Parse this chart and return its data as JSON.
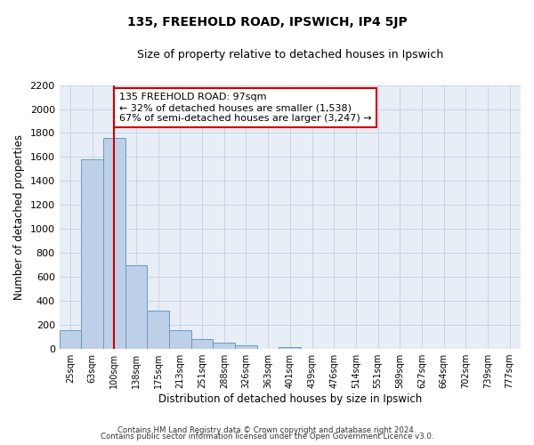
{
  "title": "135, FREEHOLD ROAD, IPSWICH, IP4 5JP",
  "subtitle": "Size of property relative to detached houses in Ipswich",
  "xlabel": "Distribution of detached houses by size in Ipswich",
  "ylabel": "Number of detached properties",
  "bar_labels": [
    "25sqm",
    "63sqm",
    "100sqm",
    "138sqm",
    "175sqm",
    "213sqm",
    "251sqm",
    "288sqm",
    "326sqm",
    "363sqm",
    "401sqm",
    "439sqm",
    "476sqm",
    "514sqm",
    "551sqm",
    "589sqm",
    "627sqm",
    "664sqm",
    "702sqm",
    "739sqm",
    "777sqm"
  ],
  "bar_values": [
    160,
    1580,
    1760,
    700,
    320,
    155,
    85,
    50,
    30,
    0,
    15,
    0,
    0,
    0,
    0,
    0,
    0,
    0,
    0,
    0,
    0
  ],
  "bar_color": "#bdd0e8",
  "bar_edge_color": "#6699cc",
  "highlight_bar_index": 2,
  "highlight_line_color": "#cc0000",
  "ylim": [
    0,
    2200
  ],
  "yticks": [
    0,
    200,
    400,
    600,
    800,
    1000,
    1200,
    1400,
    1600,
    1800,
    2000,
    2200
  ],
  "annotation_title": "135 FREEHOLD ROAD: 97sqm",
  "annotation_line1": "← 32% of detached houses are smaller (1,538)",
  "annotation_line2": "67% of semi-detached houses are larger (3,247) →",
  "annotation_box_edge": "#cc0000",
  "footer_line1": "Contains HM Land Registry data © Crown copyright and database right 2024.",
  "footer_line2": "Contains public sector information licensed under the Open Government Licence v3.0.",
  "background_color": "#ffffff",
  "plot_bg_color": "#e8eef6",
  "grid_color": "#c8d4e4"
}
